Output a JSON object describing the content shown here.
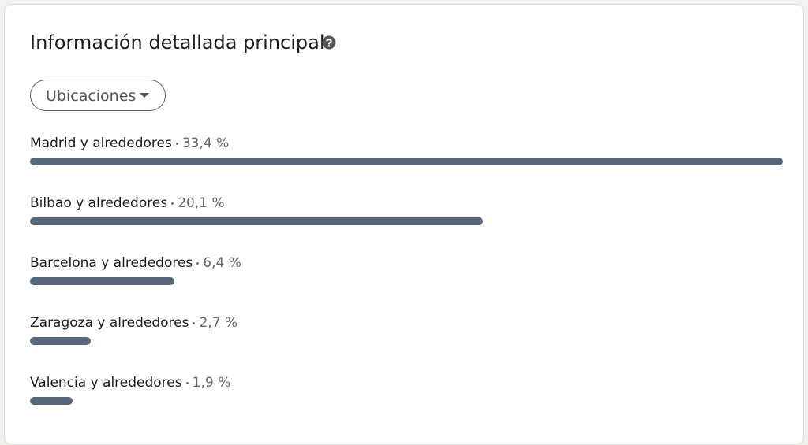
{
  "header": {
    "title": "Información detallada principal"
  },
  "dropdown": {
    "label": "Ubicaciones"
  },
  "chart_data": {
    "type": "bar",
    "categories": [
      "Madrid y alrededores",
      "Bilbao y alrededores",
      "Barcelona y alrededores",
      "Zaragoza y alrededores",
      "Valencia y alrededores"
    ],
    "values": [
      33.4,
      20.1,
      6.4,
      2.7,
      1.9
    ],
    "value_labels": [
      "33,4 %",
      "20,1 %",
      "6,4 %",
      "2,7 %",
      "1,9 %"
    ],
    "color": "#56687a"
  }
}
